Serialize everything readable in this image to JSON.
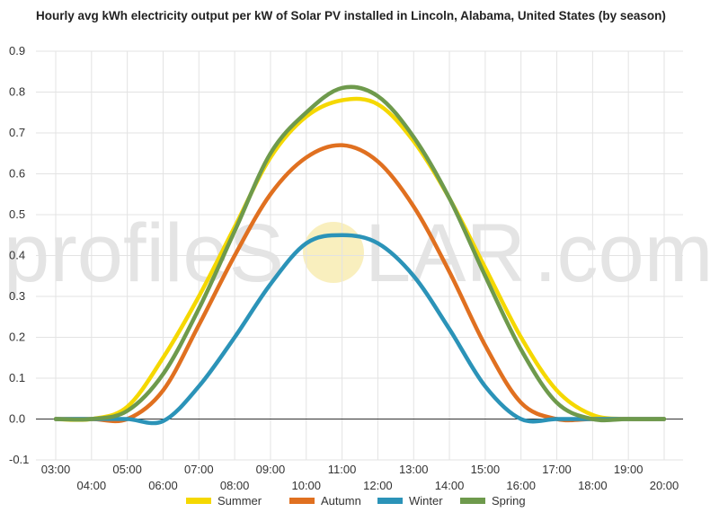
{
  "title": "Hourly avg kWh electricity output per kW of Solar PV installed in Lincoln, Alabama, United States (by season)",
  "watermark": {
    "left": "profileS",
    "middle": "LAR",
    "right": ".com",
    "sun_color": "#f7e9a8"
  },
  "chart_data": {
    "type": "line",
    "title": "Hourly avg kWh electricity output per kW of Solar PV installed in Lincoln, Alabama, United States (by season)",
    "xlabel": "",
    "ylabel": "",
    "ylim": [
      -0.1,
      0.9
    ],
    "yticks": [
      "0.9",
      "0.8",
      "0.7",
      "0.6",
      "0.5",
      "0.4",
      "0.3",
      "0.2",
      "0.1",
      "0.0",
      "-0.1"
    ],
    "ytick_values": [
      0.9,
      0.8,
      0.7,
      0.6,
      0.5,
      0.4,
      0.3,
      0.2,
      0.1,
      0.0,
      -0.1
    ],
    "x": [
      "03:00",
      "04:00",
      "05:00",
      "06:00",
      "07:00",
      "08:00",
      "09:00",
      "10:00",
      "11:00",
      "12:00",
      "13:00",
      "14:00",
      "15:00",
      "16:00",
      "17:00",
      "18:00",
      "19:00",
      "20:00"
    ],
    "grid": true,
    "legend_position": "bottom",
    "series": [
      {
        "name": "Summer",
        "color": "#f5d800",
        "values": [
          0.0,
          0.0,
          0.03,
          0.15,
          0.3,
          0.47,
          0.64,
          0.74,
          0.78,
          0.77,
          0.68,
          0.54,
          0.37,
          0.2,
          0.07,
          0.01,
          0.0,
          0.0
        ]
      },
      {
        "name": "Autumn",
        "color": "#e07020",
        "values": [
          0.0,
          0.0,
          0.0,
          0.07,
          0.23,
          0.4,
          0.55,
          0.64,
          0.67,
          0.63,
          0.52,
          0.36,
          0.18,
          0.04,
          0.0,
          0.0,
          0.0,
          0.0
        ]
      },
      {
        "name": "Winter",
        "color": "#2b93b8",
        "values": [
          0.0,
          0.0,
          0.0,
          -0.005,
          0.08,
          0.2,
          0.33,
          0.43,
          0.45,
          0.43,
          0.35,
          0.22,
          0.08,
          0.0,
          0.0,
          0.0,
          0.0,
          0.0
        ]
      },
      {
        "name": "Spring",
        "color": "#6e9a4c",
        "values": [
          0.0,
          0.0,
          0.02,
          0.11,
          0.27,
          0.46,
          0.65,
          0.75,
          0.81,
          0.79,
          0.69,
          0.54,
          0.35,
          0.17,
          0.04,
          0.0,
          0.0,
          0.0
        ]
      }
    ]
  }
}
